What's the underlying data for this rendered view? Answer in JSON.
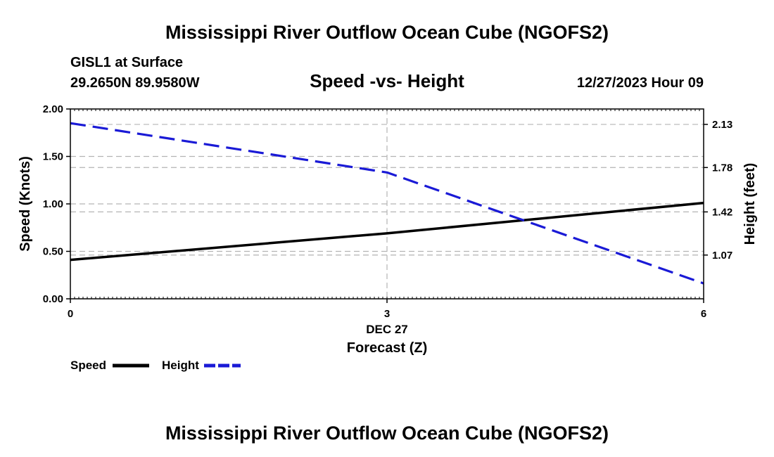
{
  "page": {
    "title_top": "Mississippi River Outflow Ocean Cube (NGOFS2)",
    "title_bottom": "Mississippi River Outflow Ocean Cube (NGOFS2)",
    "station": "GISL1 at Surface",
    "location": "29.2650N  89.9580W",
    "datetime": "12/27/2023 Hour 09"
  },
  "colors": {
    "speed": "#000000",
    "height": "#1a1ad6",
    "grid": "#b4b4b4"
  },
  "chart_data": {
    "type": "line",
    "title": "Speed -vs- Height",
    "xlabel": "Forecast (Z)",
    "xdate_label": "DEC 27",
    "ylabel_left": "Speed (Knots)",
    "ylabel_right": "Height (feet)",
    "x": [
      0,
      3,
      6
    ],
    "xlim": [
      0,
      6
    ],
    "x_ticks": [
      {
        "value": 0,
        "label": "0"
      },
      {
        "value": 3,
        "label": "3"
      },
      {
        "value": 6,
        "label": "6"
      }
    ],
    "ylim_left": [
      0,
      2
    ],
    "y_ticks_left": [
      {
        "value": 0.0,
        "label": "0.00"
      },
      {
        "value": 0.5,
        "label": "0.50"
      },
      {
        "value": 1.0,
        "label": "1.00"
      },
      {
        "value": 1.5,
        "label": "1.50"
      },
      {
        "value": 2.0,
        "label": "2.00"
      }
    ],
    "ylim_right": [
      0.715,
      2.255
    ],
    "y_ticks_right": [
      {
        "value": 1.07,
        "label": "1.07"
      },
      {
        "value": 1.42,
        "label": "1.42"
      },
      {
        "value": 1.78,
        "label": "1.78"
      },
      {
        "value": 2.13,
        "label": "2.13"
      }
    ],
    "grid": true,
    "series": [
      {
        "name": "Speed",
        "axis": "left",
        "style": "solid",
        "values": [
          0.41,
          0.69,
          1.01
        ]
      },
      {
        "name": "Height",
        "axis": "right",
        "style": "dashed",
        "values": [
          2.14,
          1.74,
          0.84
        ]
      }
    ],
    "legend": [
      {
        "label": "Speed",
        "style": "solid"
      },
      {
        "label": "Height",
        "style": "dashed"
      }
    ]
  }
}
